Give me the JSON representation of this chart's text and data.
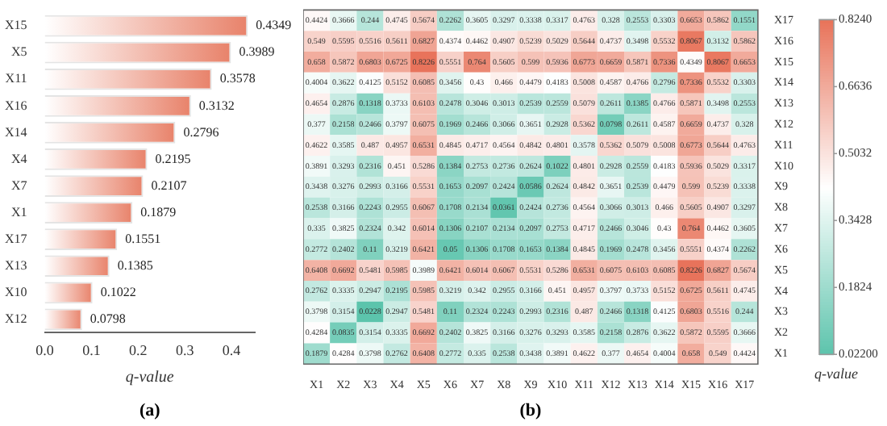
{
  "chart_data": [
    {
      "type": "bar",
      "orientation": "horizontal",
      "categories": [
        "X15",
        "X5",
        "X11",
        "X16",
        "X14",
        "X4",
        "X7",
        "X1",
        "X17",
        "X13",
        "X10",
        "X12"
      ],
      "values": [
        0.4349,
        0.3989,
        0.3578,
        0.3132,
        0.2796,
        0.2195,
        0.2107,
        0.1879,
        0.1551,
        0.1385,
        0.1022,
        0.0798
      ],
      "color": "#e8826a",
      "xlabel": "q-value",
      "xlim": [
        0,
        0.45
      ],
      "xticks": [
        {
          "value": 0,
          "label": "0.0"
        },
        0.1,
        0.2,
        0.3,
        0.4
      ],
      "data_labels": true,
      "annotations": [
        "(a)"
      ]
    },
    {
      "type": "heatmap",
      "categories": [
        "X1",
        "X2",
        "X3",
        "X4",
        "X5",
        "X6",
        "X7",
        "X8",
        "X9",
        "X10",
        "X11",
        "X12",
        "X13",
        "X14",
        "X15",
        "X16",
        "X17"
      ],
      "y_categories": [
        "X17",
        "X16",
        "X15",
        "X14",
        "X13",
        "X12",
        "X11",
        "X10",
        "X9",
        "X8",
        "X7",
        "X6",
        "X5",
        "X4",
        "X3",
        "X2",
        "X1"
      ],
      "cells": [
        [
          0.4424,
          0.3666,
          0.244,
          0.4745,
          0.5674,
          0.2262,
          0.3605,
          0.3297,
          0.3338,
          0.3317,
          0.4763,
          0.328,
          0.2553,
          0.3303,
          0.6653,
          0.5862,
          0.1551
        ],
        [
          0.549,
          0.5595,
          0.5516,
          0.5611,
          0.6827,
          0.4374,
          0.4462,
          0.4907,
          0.5239,
          0.5029,
          0.5644,
          0.4737,
          0.3498,
          0.5532,
          0.8067,
          0.3132,
          0.5862
        ],
        [
          0.658,
          0.5872,
          0.6803,
          0.6725,
          0.8226,
          0.5551,
          0.764,
          0.5605,
          0.599,
          0.5936,
          0.6773,
          0.6659,
          0.5871,
          0.7336,
          0.4349,
          0.8067,
          0.6653
        ],
        [
          0.4004,
          0.3622,
          0.4125,
          0.5152,
          0.6085,
          0.3456,
          0.43,
          0.466,
          0.4479,
          0.4183,
          0.5008,
          0.4587,
          0.4766,
          0.2796,
          0.7336,
          0.5532,
          0.3303
        ],
        [
          0.4654,
          0.2876,
          0.1318,
          0.3733,
          0.6103,
          0.2478,
          0.3046,
          0.3013,
          0.2539,
          0.2559,
          0.5079,
          0.2611,
          0.1385,
          0.4766,
          0.5871,
          0.3498,
          0.2553
        ],
        [
          0.377,
          0.2158,
          0.2466,
          0.3797,
          0.6075,
          0.1969,
          0.2466,
          0.3066,
          0.3651,
          0.2928,
          0.5362,
          0.0798,
          0.2611,
          0.4587,
          0.6659,
          0.4737,
          0.328
        ],
        [
          0.4622,
          0.3585,
          0.487,
          0.4957,
          0.6531,
          0.4845,
          0.4717,
          0.4564,
          0.4842,
          0.4801,
          0.3578,
          0.5362,
          0.5079,
          0.5008,
          0.6773,
          0.5644,
          0.4763
        ],
        [
          0.3891,
          0.3293,
          0.2316,
          0.451,
          0.5286,
          0.1384,
          0.2753,
          0.2736,
          0.2624,
          0.1022,
          0.4801,
          0.2928,
          0.2559,
          0.4183,
          0.5936,
          0.5029,
          0.3317
        ],
        [
          0.3438,
          0.3276,
          0.2993,
          0.3166,
          0.5531,
          0.1653,
          0.2097,
          0.2424,
          0.0586,
          0.2624,
          0.4842,
          0.3651,
          0.2539,
          0.4479,
          0.599,
          0.5239,
          0.3338
        ],
        [
          0.2538,
          0.3166,
          0.2243,
          0.2955,
          0.6067,
          0.1708,
          0.2134,
          0.0361,
          0.2424,
          0.2736,
          0.4564,
          0.3066,
          0.3013,
          0.466,
          0.5605,
          0.4907,
          0.3297
        ],
        [
          0.335,
          0.3825,
          0.2324,
          0.342,
          0.6014,
          0.1306,
          0.2107,
          0.2134,
          0.2097,
          0.2753,
          0.4717,
          0.2466,
          0.3046,
          0.43,
          0.764,
          0.4462,
          0.3605
        ],
        [
          0.2772,
          0.2402,
          0.11,
          0.3219,
          0.6421,
          0.05,
          0.1306,
          0.1708,
          0.1653,
          0.1384,
          0.4845,
          0.1969,
          0.2478,
          0.3456,
          0.5551,
          0.4374,
          0.2262
        ],
        [
          0.6408,
          0.6692,
          0.5481,
          0.5985,
          0.3989,
          0.6421,
          0.6014,
          0.6067,
          0.5531,
          0.5286,
          0.6531,
          0.6075,
          0.6103,
          0.6085,
          0.8226,
          0.6827,
          0.5674
        ],
        [
          0.2762,
          0.3335,
          0.2947,
          0.2195,
          0.5985,
          0.3219,
          0.342,
          0.2955,
          0.3166,
          0.451,
          0.4957,
          0.3797,
          0.3733,
          0.5152,
          0.6725,
          0.5611,
          0.4745
        ],
        [
          0.3798,
          0.3154,
          0.0228,
          0.2947,
          0.5481,
          0.11,
          0.2324,
          0.2243,
          0.2993,
          0.2316,
          0.487,
          0.2466,
          0.1318,
          0.4125,
          0.6803,
          0.5516,
          0.244
        ],
        [
          0.4284,
          0.0835,
          0.3154,
          0.3335,
          0.6692,
          0.2402,
          0.3825,
          0.3166,
          0.3276,
          0.3293,
          0.3585,
          0.2158,
          0.2876,
          0.3622,
          0.5872,
          0.5595,
          0.3666
        ],
        [
          0.1879,
          0.4284,
          0.3798,
          0.2762,
          0.6408,
          0.2772,
          0.335,
          0.2538,
          0.3438,
          0.3891,
          0.4622,
          0.377,
          0.4654,
          0.4004,
          0.658,
          0.549,
          0.4424
        ]
      ],
      "data_labels": true,
      "clabel": "q-value",
      "clim": [
        0.022,
        0.824
      ],
      "cticks": [
        {
          "value": 0.022,
          "label": "0.02200"
        },
        0.1824,
        0.3428,
        0.5032,
        0.6636,
        {
          "value": 0.824,
          "label": "0.8240"
        }
      ],
      "annotations": [
        "(b)"
      ]
    }
  ]
}
